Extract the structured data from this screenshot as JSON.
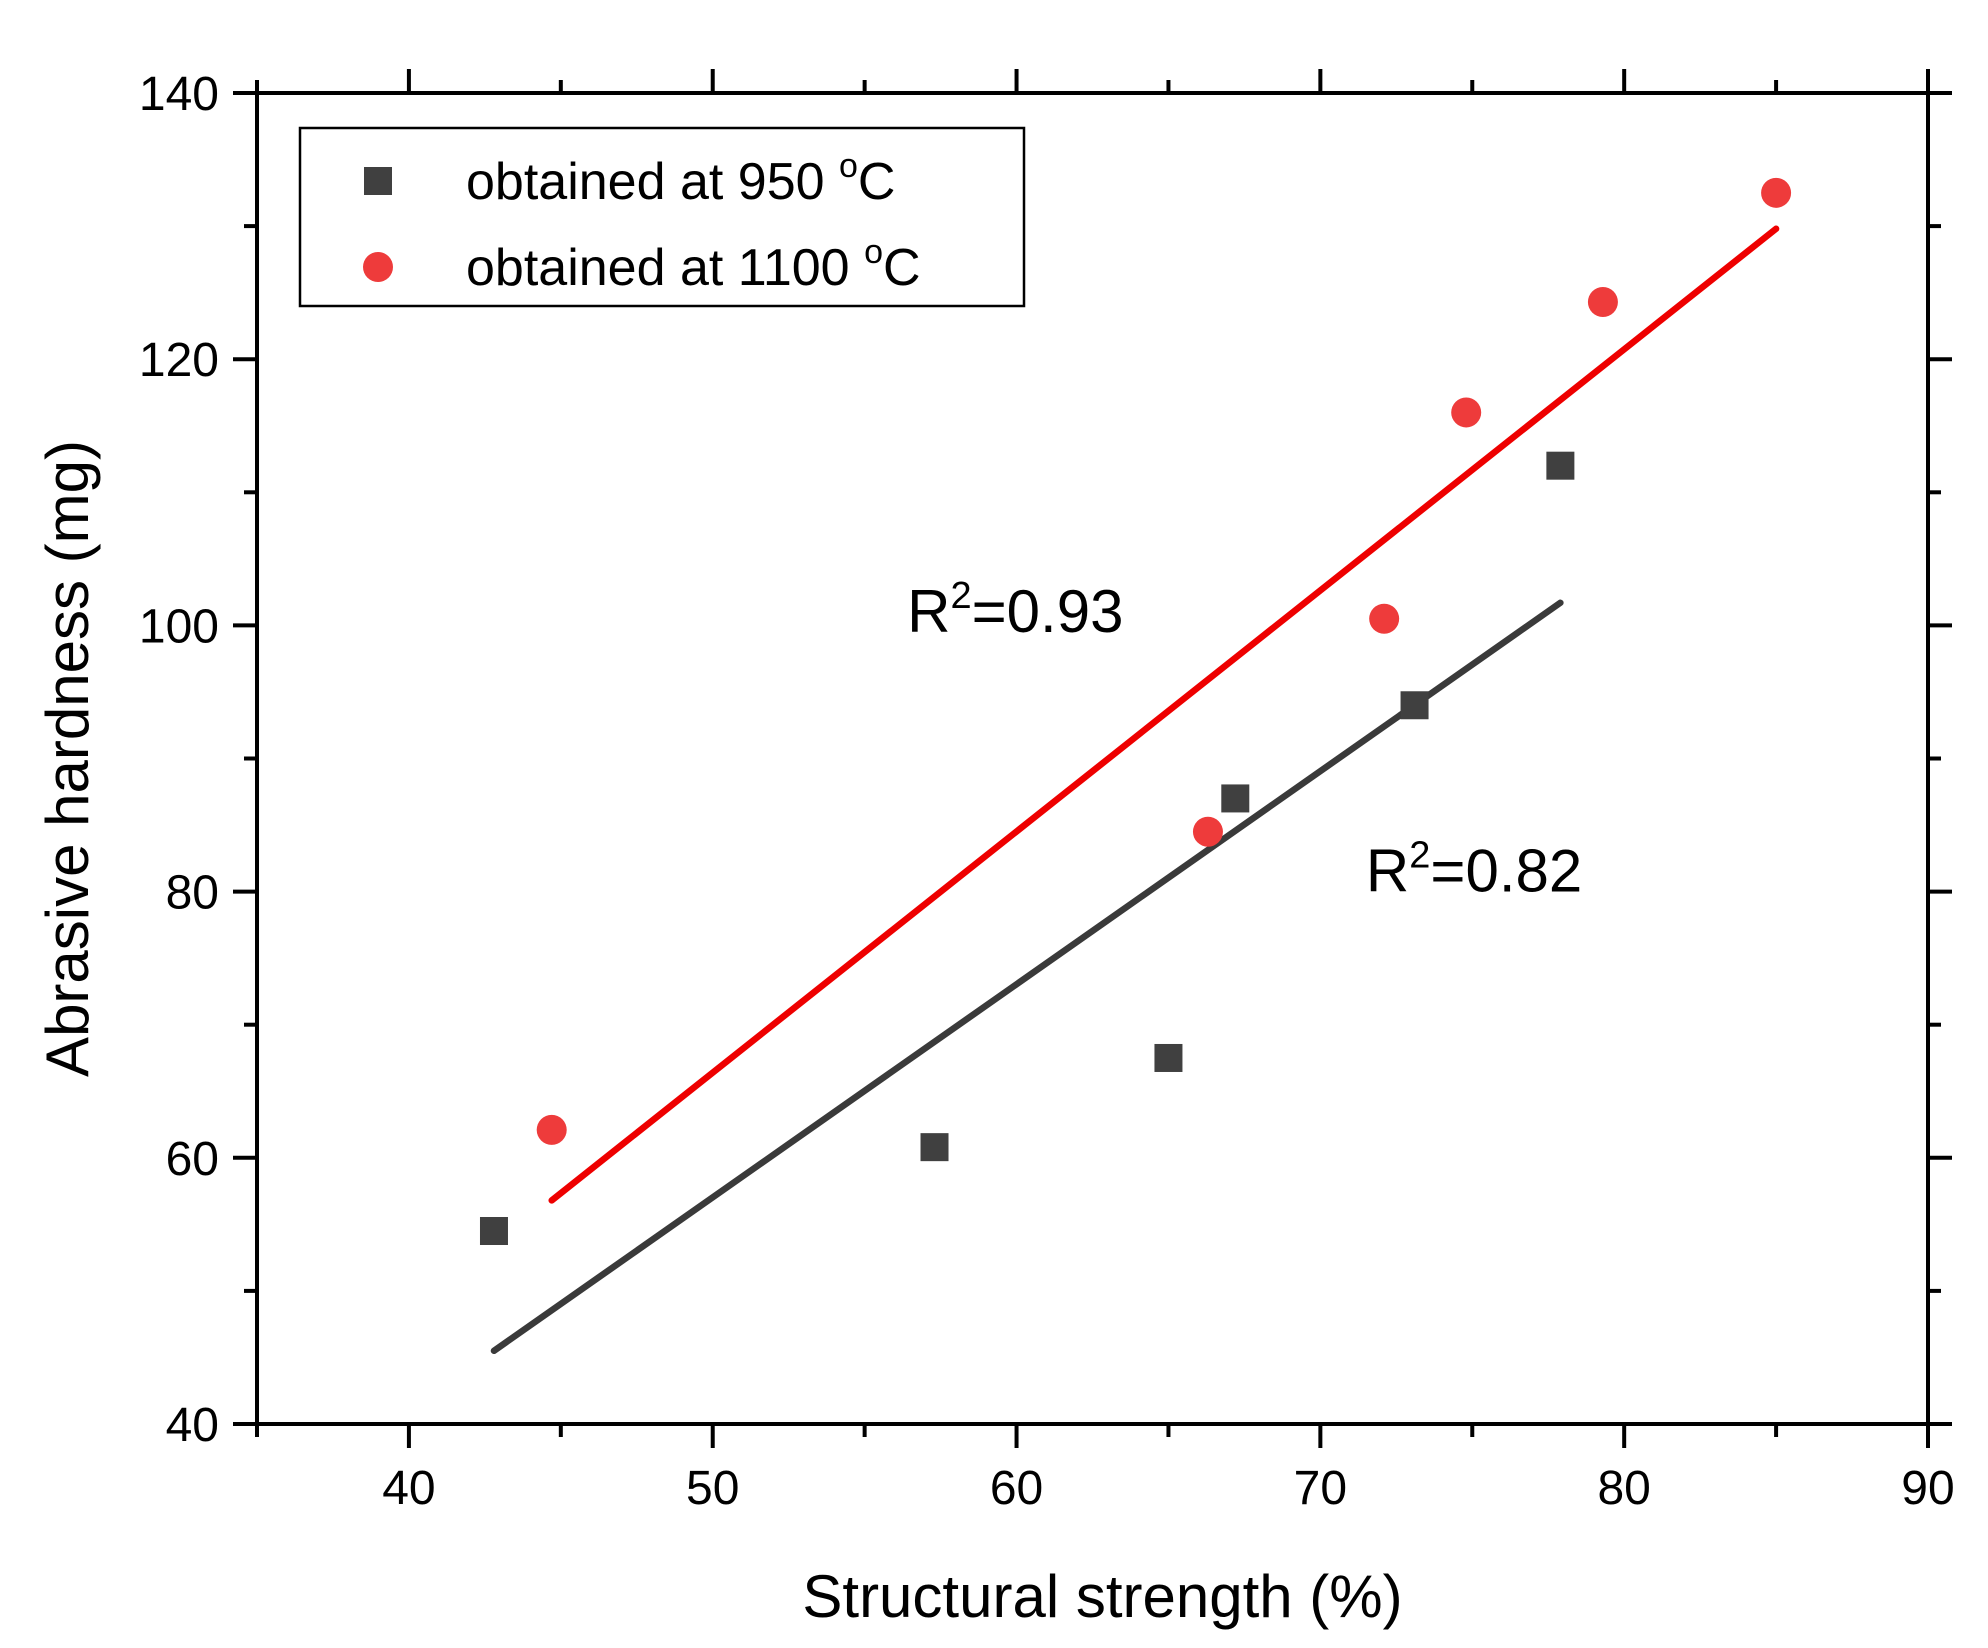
{
  "chart_data": {
    "type": "scatter",
    "title": "",
    "xlabel": "Structural strength (%)",
    "ylabel": "Abrasive hardness (mg)",
    "xlim": [
      35,
      90
    ],
    "ylim": [
      40,
      140
    ],
    "x_ticks": [
      40,
      50,
      60,
      70,
      80,
      90
    ],
    "y_ticks": [
      40,
      60,
      80,
      100,
      120,
      140
    ],
    "x_minor_ticks": [
      35,
      45,
      55,
      65,
      75,
      85
    ],
    "y_minor_ticks": [
      50,
      70,
      90,
      110,
      130
    ],
    "grid": false,
    "legend_position": "top-left",
    "series": [
      {
        "name": "obtained at 950 °C",
        "legend_main": "obtained at 950 ",
        "legend_sup": "o",
        "legend_tail": "C",
        "marker": "square",
        "color": "#404040",
        "points": [
          {
            "x": 42.8,
            "y": 54.5
          },
          {
            "x": 57.3,
            "y": 60.8
          },
          {
            "x": 65.0,
            "y": 67.5
          },
          {
            "x": 67.2,
            "y": 87.0
          },
          {
            "x": 73.1,
            "y": 94.0
          },
          {
            "x": 77.9,
            "y": 112.0
          }
        ],
        "fit": {
          "x1": 42.8,
          "y1": 45.5,
          "x2": 77.9,
          "y2": 101.7,
          "color": "#3a3a3a"
        },
        "r2": {
          "prefix": "R",
          "sup": "2",
          "value": "=0.82",
          "x": 71.5,
          "y": 80.0
        }
      },
      {
        "name": "obtained at 1100 °C",
        "legend_main": "obtained at 1100 ",
        "legend_sup": "o",
        "legend_tail": "C",
        "marker": "circle",
        "color": "#ee3b3b",
        "points": [
          {
            "x": 44.7,
            "y": 62.1
          },
          {
            "x": 66.3,
            "y": 84.5
          },
          {
            "x": 72.1,
            "y": 100.5
          },
          {
            "x": 74.8,
            "y": 116.0
          },
          {
            "x": 79.3,
            "y": 124.3
          },
          {
            "x": 85.0,
            "y": 132.5
          }
        ],
        "fit": {
          "x1": 44.7,
          "y1": 56.8,
          "x2": 85.0,
          "y2": 129.8,
          "color": "#ee0000"
        },
        "r2": {
          "prefix": "R",
          "sup": "2",
          "value": "=0.93",
          "x": 56.4,
          "y": 99.5
        }
      }
    ]
  }
}
